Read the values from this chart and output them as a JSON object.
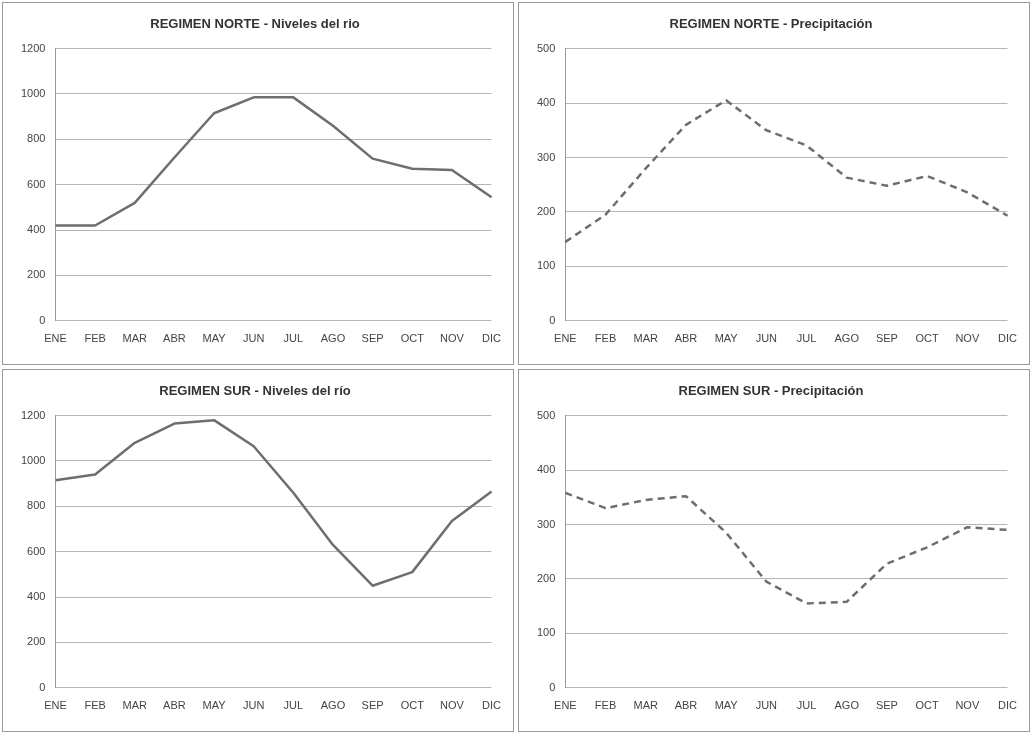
{
  "chart_data": [
    {
      "type": "line",
      "title": "REGIMEN NORTE - Niveles del rio",
      "categories": [
        "ENE",
        "FEB",
        "MAR",
        "ABR",
        "MAY",
        "JUN",
        "JUL",
        "AGO",
        "SEP",
        "OCT",
        "NOV",
        "DIC"
      ],
      "series": [
        {
          "color": "#6e6e6e",
          "values": [
            420,
            420,
            520,
            720,
            915,
            985,
            985,
            860,
            715,
            670,
            665,
            545
          ]
        }
      ],
      "ylim": [
        0,
        1200
      ],
      "yticks": [
        0,
        200,
        400,
        600,
        800,
        1000,
        1200
      ],
      "grid": "y",
      "legend": false,
      "marker": "none",
      "line_style": "solid"
    },
    {
      "type": "line",
      "title": "REGIMEN NORTE - Precipitación",
      "categories": [
        "ENE",
        "FEB",
        "MAR",
        "ABR",
        "MAY",
        "JUN",
        "JUL",
        "AGO",
        "SEP",
        "OCT",
        "NOV",
        "DIC"
      ],
      "series": [
        {
          "color": "#6e6e6e",
          "values": [
            145,
            195,
            280,
            360,
            405,
            350,
            322,
            263,
            248,
            266,
            236,
            193
          ]
        }
      ],
      "ylim": [
        0,
        500
      ],
      "yticks": [
        0,
        100,
        200,
        300,
        400,
        500
      ],
      "grid": "y",
      "legend": false,
      "marker": "none",
      "line_style": "dashed"
    },
    {
      "type": "line",
      "title": "REGIMEN SUR - Niveles del río",
      "categories": [
        "ENE",
        "FEB",
        "MAR",
        "ABR",
        "MAY",
        "JUN",
        "JUL",
        "AGO",
        "SEP",
        "OCT",
        "NOV",
        "DIC"
      ],
      "series": [
        {
          "color": "#6e6e6e",
          "values": [
            915,
            940,
            1080,
            1165,
            1180,
            1065,
            860,
            630,
            450,
            510,
            735,
            865
          ]
        }
      ],
      "ylim": [
        0,
        1200
      ],
      "yticks": [
        0,
        200,
        400,
        600,
        800,
        1000,
        1200
      ],
      "grid": "y",
      "legend": false,
      "marker": "none",
      "line_style": "solid"
    },
    {
      "type": "line",
      "title": "REGIMEN SUR - Precipitación",
      "categories": [
        "ENE",
        "FEB",
        "MAR",
        "ABR",
        "MAY",
        "JUN",
        "JUL",
        "AGO",
        "SEP",
        "OCT",
        "NOV",
        "DIC"
      ],
      "series": [
        {
          "color": "#6e6e6e",
          "values": [
            358,
            330,
            345,
            352,
            285,
            195,
            155,
            158,
            228,
            258,
            295,
            290
          ]
        }
      ],
      "ylim": [
        0,
        500
      ],
      "yticks": [
        0,
        100,
        200,
        300,
        400,
        500
      ],
      "grid": "y",
      "legend": false,
      "marker": "none",
      "line_style": "dashed"
    }
  ]
}
